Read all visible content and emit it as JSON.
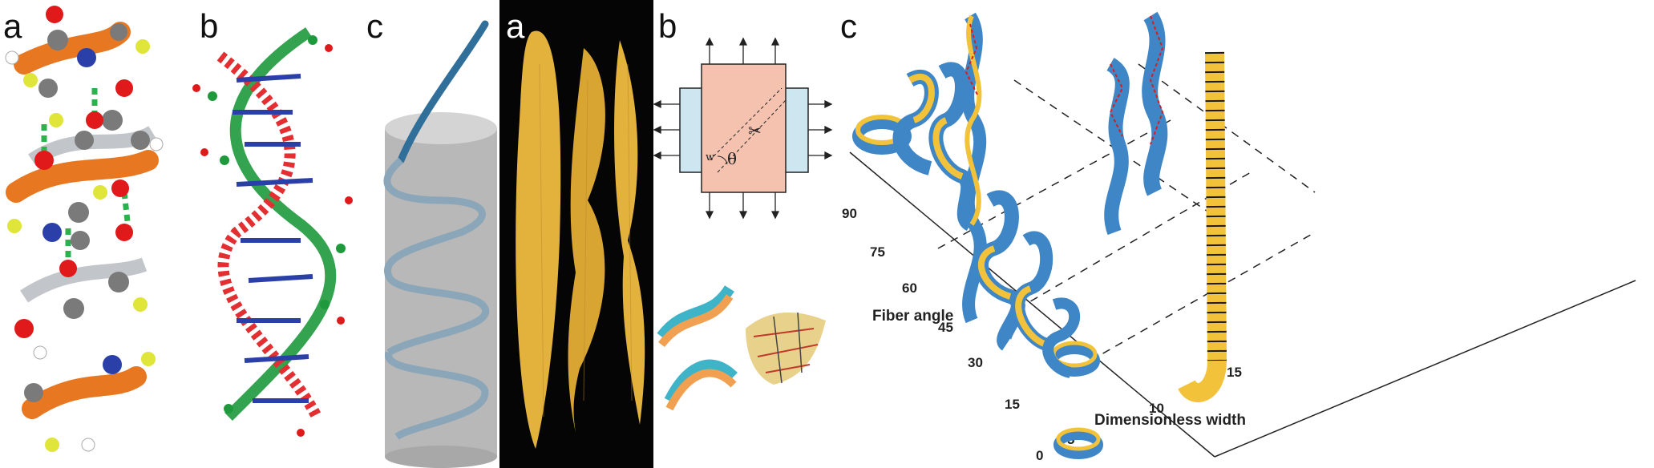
{
  "panels": [
    {
      "label": "a"
    },
    {
      "label": "b"
    },
    {
      "label": "c"
    },
    {
      "label": "a"
    },
    {
      "label": "b"
    },
    {
      "label": "c"
    }
  ],
  "schematic": {
    "angle_symbol": "θ",
    "width_symbol": "w"
  },
  "plot": {
    "y_axis_label": "Fiber angle",
    "y_ticks": [
      "90",
      "75",
      "60",
      "45",
      "30",
      "15",
      "0"
    ],
    "x_axis_label": "Dimensionless width",
    "x_ticks": [
      "5",
      "10",
      "15"
    ]
  },
  "colors": {
    "ribbon_orange": "#e87722",
    "oxygen_red": "#e0191b",
    "nitrogen_blue": "#2b3fa8",
    "carbon_grey": "#7a7a7a",
    "dna_green": "#1e9a3c",
    "helix_rod": "#8aa6b8",
    "pod_yellow": "#e3b23c",
    "film_pink": "#f6c2b0",
    "film_blue": "#cde6ef",
    "ribbon_blue": "#3f86c6",
    "ribbon_yellow": "#f2c23a"
  }
}
